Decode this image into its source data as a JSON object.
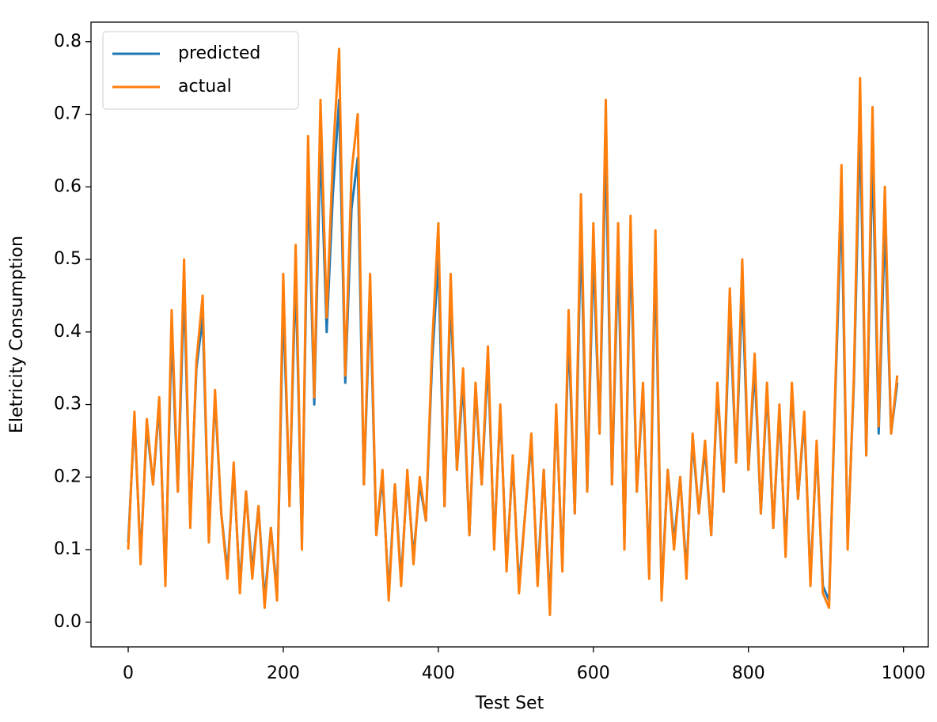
{
  "chart_data": {
    "type": "line",
    "xlabel": "Test Set",
    "ylabel": "Eletricity Consumption",
    "x": [
      0,
      8,
      16,
      24,
      32,
      40,
      48,
      56,
      64,
      72,
      80,
      88,
      96,
      104,
      112,
      120,
      128,
      136,
      144,
      152,
      160,
      168,
      176,
      184,
      192,
      200,
      208,
      216,
      224,
      232,
      240,
      248,
      256,
      264,
      272,
      280,
      288,
      296,
      304,
      312,
      320,
      328,
      336,
      344,
      352,
      360,
      368,
      376,
      384,
      392,
      400,
      408,
      416,
      424,
      432,
      440,
      448,
      456,
      464,
      472,
      480,
      488,
      496,
      504,
      512,
      520,
      528,
      536,
      544,
      552,
      560,
      568,
      576,
      584,
      592,
      600,
      608,
      616,
      624,
      632,
      640,
      648,
      656,
      664,
      672,
      680,
      688,
      696,
      704,
      712,
      720,
      728,
      736,
      744,
      752,
      760,
      768,
      776,
      784,
      792,
      800,
      808,
      816,
      824,
      832,
      840,
      848,
      856,
      864,
      872,
      880,
      888,
      896,
      904,
      912,
      920,
      928,
      936,
      944,
      952,
      960,
      968,
      976,
      984,
      992
    ],
    "series": [
      {
        "name": "predicted",
        "color": "#1f77b4",
        "values": [
          0.11,
          0.28,
          0.09,
          0.27,
          0.19,
          0.3,
          0.06,
          0.4,
          0.18,
          0.46,
          0.14,
          0.35,
          0.42,
          0.12,
          0.31,
          0.15,
          0.07,
          0.21,
          0.05,
          0.18,
          0.07,
          0.16,
          0.03,
          0.13,
          0.04,
          0.44,
          0.17,
          0.48,
          0.11,
          0.62,
          0.3,
          0.66,
          0.4,
          0.59,
          0.72,
          0.33,
          0.57,
          0.64,
          0.19,
          0.45,
          0.12,
          0.2,
          0.04,
          0.19,
          0.06,
          0.2,
          0.09,
          0.19,
          0.14,
          0.36,
          0.5,
          0.16,
          0.45,
          0.21,
          0.33,
          0.12,
          0.32,
          0.19,
          0.36,
          0.11,
          0.29,
          0.08,
          0.22,
          0.05,
          0.15,
          0.25,
          0.06,
          0.21,
          0.02,
          0.29,
          0.08,
          0.4,
          0.15,
          0.54,
          0.18,
          0.51,
          0.26,
          0.66,
          0.19,
          0.51,
          0.11,
          0.52,
          0.18,
          0.32,
          0.07,
          0.5,
          0.04,
          0.21,
          0.11,
          0.2,
          0.07,
          0.25,
          0.15,
          0.24,
          0.12,
          0.32,
          0.18,
          0.43,
          0.22,
          0.46,
          0.21,
          0.35,
          0.15,
          0.32,
          0.13,
          0.29,
          0.1,
          0.32,
          0.17,
          0.28,
          0.06,
          0.24,
          0.05,
          0.03,
          0.31,
          0.58,
          0.11,
          0.33,
          0.69,
          0.23,
          0.65,
          0.26,
          0.55,
          0.26,
          0.33
        ]
      },
      {
        "name": "actual",
        "color": "#ff7f0e",
        "values": [
          0.1,
          0.29,
          0.08,
          0.28,
          0.19,
          0.31,
          0.05,
          0.43,
          0.18,
          0.5,
          0.13,
          0.36,
          0.45,
          0.11,
          0.32,
          0.15,
          0.06,
          0.22,
          0.04,
          0.18,
          0.06,
          0.16,
          0.02,
          0.13,
          0.03,
          0.48,
          0.16,
          0.52,
          0.1,
          0.67,
          0.31,
          0.72,
          0.42,
          0.64,
          0.79,
          0.34,
          0.62,
          0.7,
          0.19,
          0.48,
          0.12,
          0.21,
          0.03,
          0.19,
          0.05,
          0.21,
          0.08,
          0.2,
          0.14,
          0.38,
          0.55,
          0.16,
          0.48,
          0.21,
          0.35,
          0.12,
          0.33,
          0.19,
          0.38,
          0.1,
          0.3,
          0.07,
          0.23,
          0.04,
          0.15,
          0.26,
          0.05,
          0.21,
          0.01,
          0.3,
          0.07,
          0.43,
          0.15,
          0.59,
          0.18,
          0.55,
          0.26,
          0.72,
          0.19,
          0.55,
          0.1,
          0.56,
          0.18,
          0.33,
          0.06,
          0.54,
          0.03,
          0.21,
          0.1,
          0.2,
          0.06,
          0.26,
          0.15,
          0.25,
          0.12,
          0.33,
          0.18,
          0.46,
          0.22,
          0.5,
          0.21,
          0.37,
          0.15,
          0.33,
          0.13,
          0.3,
          0.09,
          0.33,
          0.17,
          0.29,
          0.05,
          0.25,
          0.04,
          0.02,
          0.32,
          0.63,
          0.1,
          0.34,
          0.75,
          0.23,
          0.71,
          0.27,
          0.6,
          0.26,
          0.34
        ]
      }
    ],
    "xlim": [
      -48,
      1032
    ],
    "ylim": [
      -0.034,
      0.827
    ],
    "xticks": [
      0,
      200,
      400,
      600,
      800,
      1000
    ],
    "yticks": [
      {
        "value": 0,
        "label": "0.0"
      },
      0.1,
      0.2,
      0.3,
      0.4,
      0.5,
      0.6,
      0.7,
      0.8
    ],
    "legend": "upper left",
    "grid": false
  }
}
